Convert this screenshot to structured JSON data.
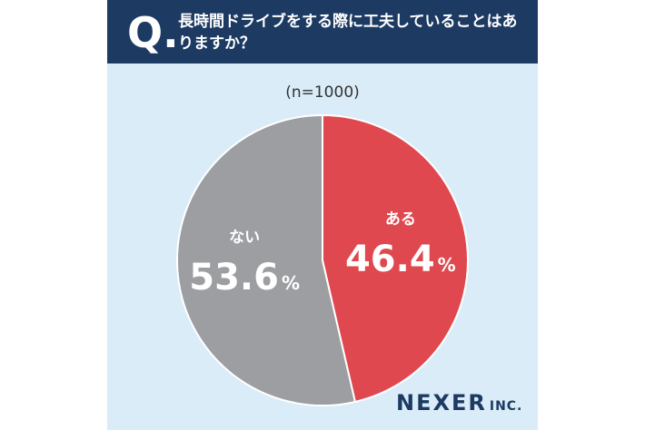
{
  "header": {
    "q_mark": "Q.",
    "question": "長時間ドライブをする際に工夫していることはありますか？"
  },
  "sample_size": "(n=1000)",
  "brand": {
    "name": "NEXER",
    "suffix": "INC."
  },
  "colors": {
    "header_bg": "#1d3a63",
    "card_bg": "#d9ecf8",
    "aru": "#e0484f",
    "nai": "#9d9ea2"
  },
  "chart_data": {
    "type": "pie",
    "title": "長時間ドライブをする際に工夫していることはありますか？",
    "slices": [
      {
        "label": "ある",
        "value": 46.4,
        "display": "46.4",
        "unit": "%"
      },
      {
        "label": "ない",
        "value": 53.6,
        "display": "53.6",
        "unit": "%"
      }
    ]
  }
}
